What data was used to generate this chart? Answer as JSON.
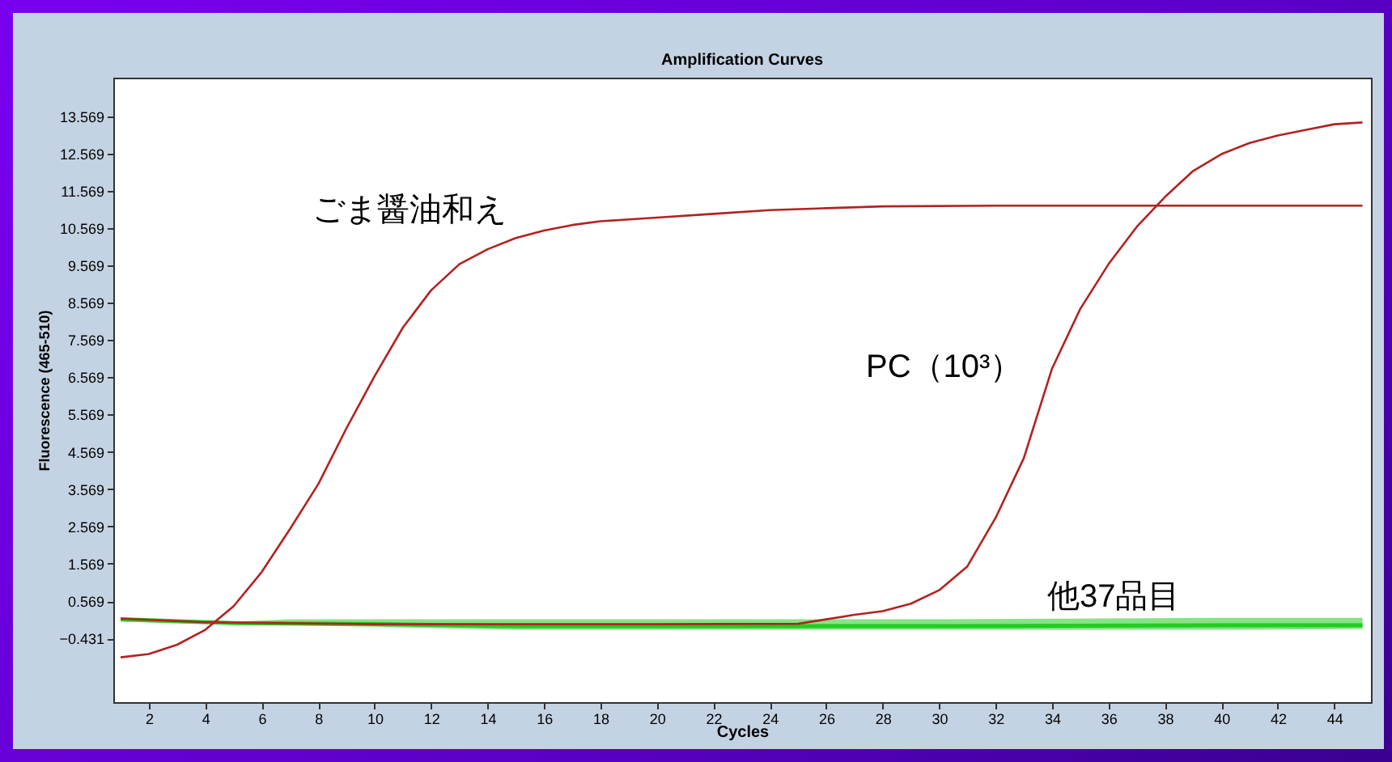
{
  "chart_data": {
    "type": "line",
    "title": "Amplification Curves",
    "xlabel": "Cycles",
    "ylabel": "Fluorescence (465-510)",
    "xlim": [
      0.74,
      45.3
    ],
    "ylim": [
      -2.14,
      14.6
    ],
    "xticks": [
      2,
      4,
      6,
      8,
      10,
      12,
      14,
      16,
      18,
      20,
      22,
      24,
      26,
      28,
      30,
      32,
      34,
      36,
      38,
      40,
      42,
      44
    ],
    "yticks": [
      -0.431,
      0.569,
      1.569,
      2.569,
      3.569,
      4.569,
      5.569,
      6.569,
      7.569,
      8.569,
      9.569,
      10.569,
      11.569,
      12.569,
      13.569
    ],
    "grid": false,
    "marker": "none",
    "line_style": "solid",
    "series": [
      {
        "name": "ごま醤油和え",
        "color": "#b22222",
        "x": [
          1,
          2,
          3,
          4,
          5,
          6,
          7,
          8,
          9,
          10,
          11,
          12,
          13,
          14,
          15,
          16,
          17,
          18,
          20,
          22,
          24,
          26,
          28,
          32,
          36,
          40,
          45
        ],
        "values": [
          -0.94,
          -0.85,
          -0.6,
          -0.2,
          0.43,
          1.35,
          2.5,
          3.7,
          5.2,
          6.6,
          7.9,
          8.9,
          9.6,
          10.0,
          10.3,
          10.5,
          10.65,
          10.75,
          10.85,
          10.95,
          11.05,
          11.1,
          11.15,
          11.17,
          11.17,
          11.17,
          11.17
        ]
      },
      {
        "name": "PC（10³）",
        "color": "#b22222",
        "x": [
          1,
          4,
          10,
          20,
          25,
          27,
          28,
          29,
          30,
          31,
          32,
          33,
          34,
          35,
          36,
          37,
          38,
          39,
          40,
          41,
          42,
          43,
          44,
          45
        ],
        "values": [
          0.1,
          0.0,
          -0.05,
          -0.05,
          -0.04,
          0.2,
          0.3,
          0.5,
          0.86,
          1.5,
          2.8,
          4.4,
          6.8,
          8.4,
          9.6,
          10.6,
          11.4,
          12.1,
          12.55,
          12.85,
          13.05,
          13.2,
          13.35,
          13.4
        ]
      },
      {
        "name": "他37品目",
        "color": "#22cc22",
        "x": [
          1,
          5,
          7,
          10,
          15,
          20,
          30,
          40,
          45
        ],
        "values": [
          0.08,
          -0.02,
          -0.03,
          -0.05,
          -0.1,
          -0.1,
          -0.1,
          -0.08,
          -0.08
        ],
        "lower": [
          0.02,
          -0.06,
          -0.08,
          -0.12,
          -0.2,
          -0.2,
          -0.2,
          -0.2,
          -0.18
        ],
        "upper": [
          0.12,
          0.02,
          0.08,
          0.08,
          0.08,
          0.08,
          0.08,
          0.12,
          0.12
        ]
      }
    ]
  }
}
